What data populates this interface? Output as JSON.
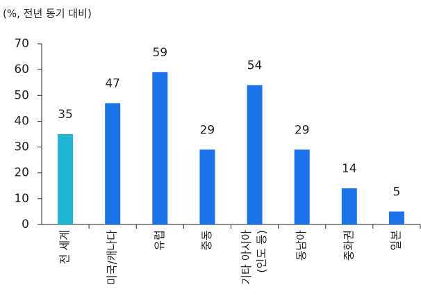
{
  "chart_data": {
    "type": "bar",
    "unit_label": "(%, 전년 동기 대비)",
    "categories": [
      "전 세계",
      "미국/캐나다",
      "유럽",
      "중동",
      [
        "기타 아시아",
        "(인도 등)"
      ],
      "동남아",
      "중화권",
      "일본"
    ],
    "values": [
      35,
      47,
      59,
      29,
      54,
      29,
      14,
      5
    ],
    "colors": [
      "#1fb5d3",
      "#1a73e8",
      "#1a73e8",
      "#1a73e8",
      "#1a73e8",
      "#1a73e8",
      "#1a73e8",
      "#1a73e8"
    ],
    "ylim": [
      0,
      70
    ],
    "yticks": [
      0,
      10,
      20,
      30,
      40,
      50,
      60,
      70
    ],
    "grid": false
  }
}
